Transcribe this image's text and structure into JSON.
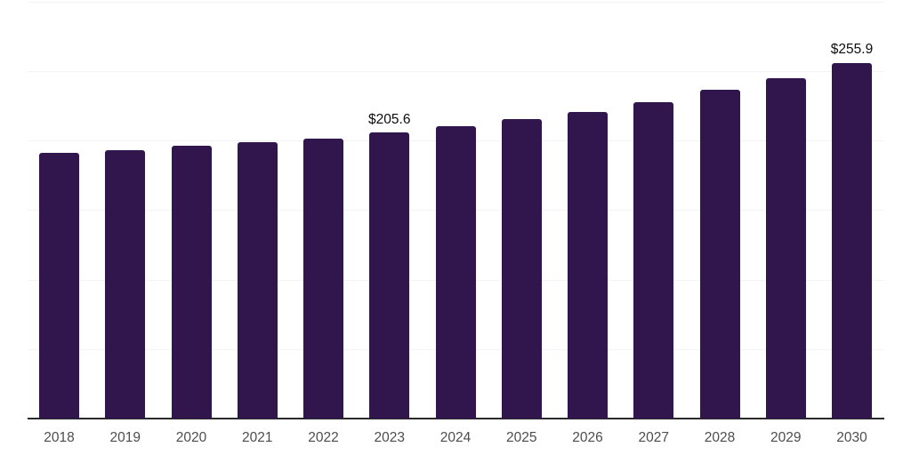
{
  "chart_data": {
    "type": "bar",
    "title": "",
    "xlabel": "",
    "ylabel": "",
    "categories": [
      "2018",
      "2019",
      "2020",
      "2021",
      "2022",
      "2023",
      "2024",
      "2025",
      "2026",
      "2027",
      "2028",
      "2029",
      "2030"
    ],
    "values": [
      190.8,
      192.9,
      195.9,
      198.6,
      201.2,
      205.6,
      210.4,
      215.6,
      220.4,
      227.8,
      236.4,
      245.0,
      255.9
    ],
    "data_labels": [
      "",
      "",
      "",
      "",
      "",
      "$205.6",
      "",
      "",
      "",
      "",
      "",
      "",
      "$255.9"
    ],
    "value_prefix": "$",
    "ylim": [
      0,
      300
    ],
    "gridline_values": [
      50,
      100,
      150,
      200,
      250,
      300
    ],
    "grid": "horizontal",
    "legend_position": "none",
    "y_axis_tick_labels_visible": false,
    "colors": {
      "bar": "#31154d",
      "axis": "#2b2b2b",
      "gridline": "#f3f3f3",
      "tick_label": "#4d4d4d",
      "data_label": "#0d0d0d",
      "background": "#ffffff"
    }
  }
}
